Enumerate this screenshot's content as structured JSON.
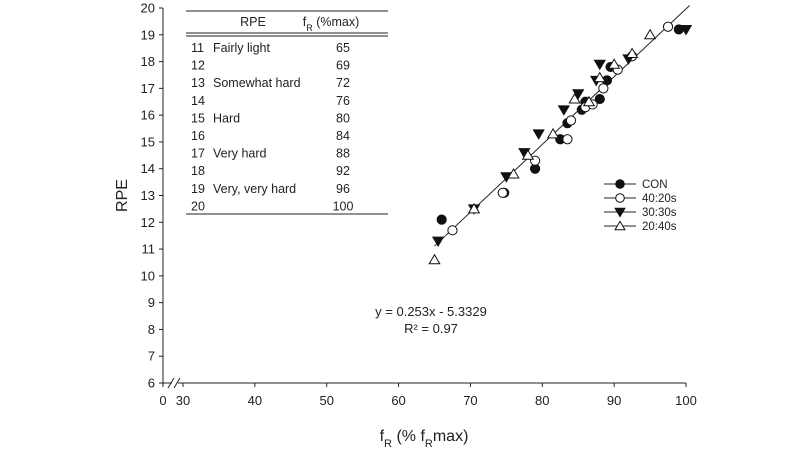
{
  "chart_data": {
    "type": "scatter",
    "ylabel": "RPE",
    "xlabel": "f_R (% f_Rmax)",
    "xlabel_parts": {
      "main": "f",
      "sub1": "R",
      "mid": " (% f",
      "sub2": "R",
      "tail": "max)"
    },
    "xlim": [
      0,
      100
    ],
    "x_break_after": 0,
    "x_resume": 25,
    "x_ticks": [
      "0",
      "30",
      "40",
      "50",
      "60",
      "70",
      "80",
      "90",
      "100"
    ],
    "x_tick_values": [
      0,
      30,
      40,
      50,
      60,
      70,
      80,
      90,
      100
    ],
    "ylim": [
      6,
      20
    ],
    "y_ticks": [
      "6",
      "7",
      "8",
      "9",
      "10",
      "11",
      "12",
      "13",
      "14",
      "15",
      "16",
      "17",
      "18",
      "19",
      "20"
    ],
    "regression": {
      "slope": 0.253,
      "intercept": -5.3329,
      "x_range": [
        65,
        100.5
      ],
      "equation_text": "y = 0.253x - 5.3329",
      "r2_text": "R² = 0.97"
    },
    "legend_position": "right",
    "series": [
      {
        "name": "CON",
        "marker": "circle-filled",
        "points": [
          [
            66,
            12.1
          ],
          [
            74.7,
            13.1
          ],
          [
            79,
            14
          ],
          [
            82.5,
            15.1
          ],
          [
            83.5,
            15.7
          ],
          [
            85.5,
            16.2
          ],
          [
            86,
            16.5
          ],
          [
            88,
            16.6
          ],
          [
            89,
            17.3
          ],
          [
            89.5,
            17.8
          ],
          [
            99,
            19.2
          ]
        ]
      },
      {
        "name": "40:20s",
        "marker": "circle-open",
        "points": [
          [
            67.5,
            11.7
          ],
          [
            74.5,
            13.1
          ],
          [
            79,
            14.3
          ],
          [
            83.5,
            15.1
          ],
          [
            84,
            15.8
          ],
          [
            86,
            16.3
          ],
          [
            87,
            16.4
          ],
          [
            88.5,
            17
          ],
          [
            90.5,
            17.7
          ],
          [
            92.5,
            18.2
          ],
          [
            97.5,
            19.3
          ]
        ]
      },
      {
        "name": "30:30s",
        "marker": "triangle-down-filled",
        "points": [
          [
            65.5,
            11.3
          ],
          [
            70.5,
            12.5
          ],
          [
            75,
            13.7
          ],
          [
            77.5,
            14.6
          ],
          [
            79.5,
            15.3
          ],
          [
            83,
            16.2
          ],
          [
            85,
            16.8
          ],
          [
            87.5,
            17.3
          ],
          [
            88,
            17.9
          ],
          [
            92,
            18.1
          ],
          [
            100,
            19.2
          ]
        ]
      },
      {
        "name": "20:40s",
        "marker": "triangle-up-open",
        "points": [
          [
            65,
            10.6
          ],
          [
            70.5,
            12.5
          ],
          [
            76,
            13.8
          ],
          [
            78,
            14.5
          ],
          [
            81.5,
            15.3
          ],
          [
            84.5,
            16.6
          ],
          [
            86.5,
            16.5
          ],
          [
            88,
            17.4
          ],
          [
            90,
            17.9
          ],
          [
            92.5,
            18.3
          ],
          [
            95,
            19
          ]
        ]
      }
    ]
  },
  "inset_table": {
    "headers": {
      "rpe": "RPE",
      "fr_main": "f",
      "fr_sub": "R",
      "fr_tail": " (%max)"
    },
    "rows": [
      {
        "rpe": "11",
        "desc": "Fairly light",
        "fr": "65"
      },
      {
        "rpe": "12",
        "desc": "",
        "fr": "69"
      },
      {
        "rpe": "13",
        "desc": "Somewhat hard",
        "fr": "72"
      },
      {
        "rpe": "14",
        "desc": "",
        "fr": "76"
      },
      {
        "rpe": "15",
        "desc": "Hard",
        "fr": "80"
      },
      {
        "rpe": "16",
        "desc": "",
        "fr": "84"
      },
      {
        "rpe": "17",
        "desc": "Very hard",
        "fr": "88"
      },
      {
        "rpe": "18",
        "desc": "",
        "fr": "92"
      },
      {
        "rpe": "19",
        "desc": "Very, very hard",
        "fr": "96"
      },
      {
        "rpe": "20",
        "desc": "",
        "fr": "100"
      }
    ]
  }
}
